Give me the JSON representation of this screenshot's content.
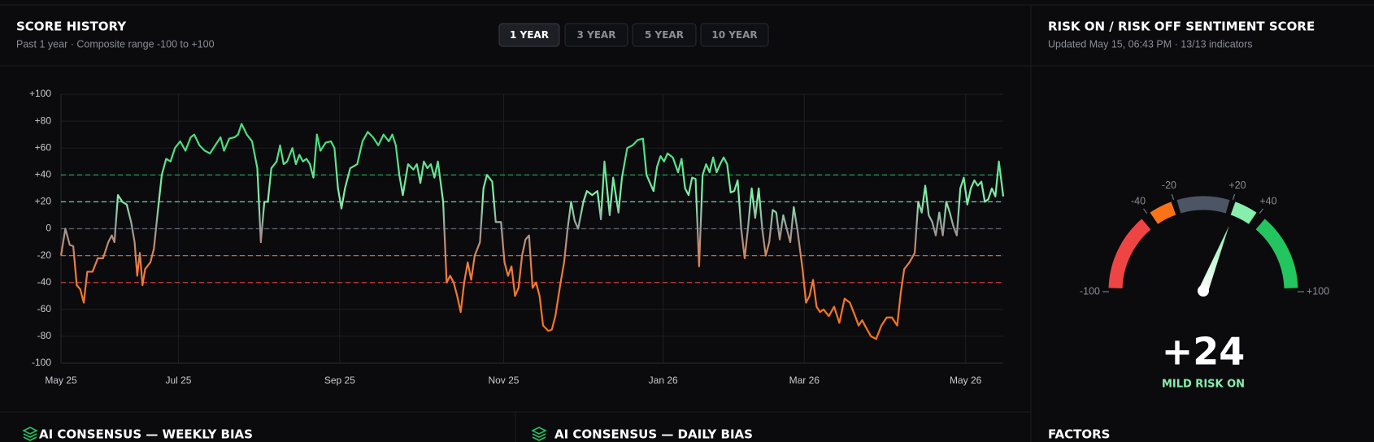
{
  "chart_data": {
    "type": "line",
    "title": "SCORE HISTORY",
    "subtitle": "Past 1 year · Composite range -100 to +100",
    "range_buttons": {
      "options": [
        "1 YEAR",
        "3 YEAR",
        "5 YEAR",
        "10 YEAR"
      ],
      "active": 0
    },
    "x": [
      0,
      1,
      2,
      2.8,
      3.6,
      4.4,
      5.2,
      6,
      7.2,
      8.4,
      9.6,
      10.8,
      11.6,
      12.2,
      13,
      14,
      15,
      16,
      16.8,
      17.4,
      18,
      18.6,
      19.2,
      20.4,
      21.2,
      22,
      23,
      24,
      25,
      26,
      27.2,
      28.4,
      29.6,
      30.4,
      31.6,
      32.8,
      34,
      35.2,
      36.4,
      37.2,
      38.4,
      39.6,
      40.4,
      41.2,
      42.4,
      43.6,
      44.8,
      45.6,
      46.4,
      47.2,
      48,
      49.2,
      50,
      50.8,
      51.6,
      52.8,
      53.6,
      54.4,
      55.2,
      56,
      56.8,
      57.6,
      58.4,
      59.2,
      60.4,
      61.6,
      62.4,
      63.2,
      64,
      64.8,
      66,
      67.6,
      68.8,
      70,
      71.2,
      72.4,
      73.6,
      74.8,
      75.6,
      76.4,
      77.2,
      78,
      79.2,
      80.4,
      81.2,
      82,
      82.8,
      83.6,
      84.4,
      85.2,
      86,
      87.2,
      88,
      88.8,
      89.6,
      90.4,
      91.2,
      92,
      92.8,
      93.6,
      94.4,
      95.6,
      96.4,
      97.2,
      98.4,
      99.2,
      100.4,
      101.2,
      102,
      102.8,
      103.6,
      104.4,
      105.2,
      106,
      106.8,
      107.6,
      108.4,
      109.2,
      110,
      111.2,
      112,
      112.8,
      114,
      114.8,
      115.6,
      116.4,
      117.2,
      118,
      119.2,
      120,
      121.2,
      122.4,
      123.2,
      124,
      125.2,
      126,
      127.2,
      128,
      129.2,
      130.4,
      131.6,
      132.8,
      133.6,
      134.4,
      135.2,
      136,
      136.8,
      137.6,
      138.4,
      139.6,
      140.8,
      141.6,
      142.4,
      143.2,
      144,
      144.8,
      145.6,
      146.4,
      147.2,
      148,
      148.8,
      149.6,
      150.4,
      151.2,
      152,
      152.8,
      153.6,
      154.4,
      155.2,
      156,
      156.8,
      157.6,
      158.4,
      159.2,
      160,
      160.8,
      161.6,
      162.4,
      163.2,
      164,
      164.8,
      165.6,
      166.4,
      167.2,
      168,
      169.2,
      170,
      170.8,
      171.6,
      172.4,
      173.2,
      174,
      175.2,
      176.4,
      177.6,
      178.8,
      180,
      181.2,
      182,
      182.8,
      183.6,
      184.8,
      186,
      187.2,
      188.4,
      189.6,
      190.8,
      191.6,
      192.4,
      193.6,
      194.8,
      195.6,
      196.4,
      197.2,
      198,
      198.8,
      199.6,
      200.4,
      201.2,
      202,
      202.8,
      203.6,
      204.4,
      205.2,
      206,
      206.8,
      207.6,
      208.4,
      209.2,
      210,
      210.8,
      211.6,
      212.4,
      213.2,
      214,
      215
    ],
    "values": [
      -20,
      0,
      -12,
      -13,
      -42,
      -45,
      -55,
      -32,
      -32,
      -22,
      -22,
      -10,
      -5,
      -10,
      25,
      20,
      18,
      5,
      -10,
      -35,
      -18,
      -42,
      -30,
      -25,
      -15,
      10,
      40,
      52,
      50,
      60,
      65,
      58,
      68,
      70,
      62,
      58,
      56,
      62,
      68,
      58,
      67,
      68,
      70,
      78,
      70,
      65,
      45,
      -10,
      20,
      20,
      45,
      50,
      62,
      48,
      50,
      60,
      48,
      55,
      50,
      52,
      48,
      38,
      70,
      58,
      64,
      65,
      60,
      30,
      15,
      30,
      45,
      48,
      65,
      72,
      68,
      62,
      70,
      65,
      70,
      62,
      40,
      25,
      48,
      44,
      48,
      34,
      50,
      45,
      48,
      38,
      50,
      20,
      -40,
      -35,
      -40,
      -50,
      -62,
      -40,
      -25,
      -38,
      -20,
      -10,
      30,
      40,
      35,
      5,
      5,
      -25,
      -35,
      -28,
      -50,
      -44,
      -20,
      -8,
      -5,
      -44,
      -40,
      -50,
      -72,
      -76,
      -75,
      -65,
      -40,
      -25,
      0,
      20,
      6,
      0,
      20,
      28,
      25,
      28,
      7,
      50,
      10,
      38,
      12,
      38,
      60,
      62,
      66,
      67,
      40,
      34,
      28,
      46,
      54,
      50,
      56,
      53,
      42,
      52,
      30,
      25,
      38,
      37,
      -28,
      40,
      48,
      42,
      53,
      42,
      48,
      53,
      48,
      27,
      28,
      36,
      0,
      -22,
      2,
      30,
      8,
      30,
      0,
      -20,
      -10,
      14,
      12,
      -8,
      10,
      0,
      -10,
      16,
      0,
      -30,
      -55,
      -50,
      -38,
      -58,
      -62,
      -60,
      -65,
      -58,
      -70,
      -52,
      -55,
      -65,
      -72,
      -68,
      -73,
      -80,
      -82,
      -72,
      -66,
      -66,
      -72,
      -48,
      -30,
      -25,
      -18,
      20,
      12,
      32,
      10,
      5,
      -5,
      12,
      -5,
      20,
      12,
      2,
      -5,
      30,
      38,
      18,
      30,
      36,
      32,
      35,
      20,
      22,
      30,
      24,
      50,
      24
    ],
    "xlim": [
      0,
      215
    ],
    "xticks": [
      {
        "value": 0,
        "label": "May 25"
      },
      {
        "value": 26.8,
        "label": "Jul 25"
      },
      {
        "value": 63.6,
        "label": "Sep 25"
      },
      {
        "value": 101,
        "label": "Nov 25"
      },
      {
        "value": 137.4,
        "label": "Jan 26"
      },
      {
        "value": 169.6,
        "label": "Mar 26"
      },
      {
        "value": 206.4,
        "label": "May 26"
      }
    ],
    "ylim": [
      -100,
      100
    ],
    "yticks": [
      {
        "value": 100,
        "label": "+100"
      },
      {
        "value": 80,
        "label": "+80"
      },
      {
        "value": 60,
        "label": "+60"
      },
      {
        "value": 40,
        "label": "+40"
      },
      {
        "value": 20,
        "label": "+20"
      },
      0,
      -20,
      -40,
      -60,
      -80,
      -100
    ],
    "grid": true,
    "reference_lines": [
      {
        "value": 40,
        "color": "#22c55e"
      },
      {
        "value": 20,
        "color": "#86efac"
      },
      {
        "value": 0,
        "color": "#6b7280"
      },
      {
        "value": -20,
        "color": "#f97316"
      },
      {
        "value": -40,
        "color": "#ef4444"
      }
    ],
    "line_gradient": [
      {
        "value": 60,
        "color": "#4ade80"
      },
      {
        "value": 22,
        "color": "#86efac"
      },
      {
        "value": 0,
        "color": "#9a9a9a"
      },
      {
        "value": -30,
        "color": "#f07b3a"
      },
      {
        "value": -80,
        "color": "#f97316"
      }
    ]
  },
  "gauge": {
    "type": "gauge",
    "title": "RISK ON / RISK OFF SENTIMENT SCORE",
    "subtitle": "Updated May 15, 06:43 PM · 13/13 indicators",
    "range": [
      -100,
      100
    ],
    "bands": [
      {
        "from": -98,
        "to": -45,
        "color": "#ef4444"
      },
      {
        "from": -38,
        "to": -22,
        "color": "#f97316"
      },
      {
        "from": -18,
        "to": 18,
        "color": "#4b5563"
      },
      {
        "from": 22,
        "to": 38,
        "color": "#86efac"
      },
      {
        "from": 45,
        "to": 98,
        "color": "#22c55e"
      }
    ],
    "ticks": [
      {
        "value": -100,
        "label": "-100"
      },
      -40,
      -20,
      {
        "value": 20,
        "label": "+20"
      },
      {
        "value": 40,
        "label": "+40"
      },
      {
        "value": 100,
        "label": "+100"
      }
    ],
    "value": 24,
    "value_label": "+24",
    "status": "MILD RISK ON",
    "status_color": "#86efac"
  },
  "panels": {
    "weekly": "AI CONSENSUS — WEEKLY BIAS",
    "daily": "AI CONSENSUS — DAILY BIAS",
    "factors": "FACTORS"
  }
}
